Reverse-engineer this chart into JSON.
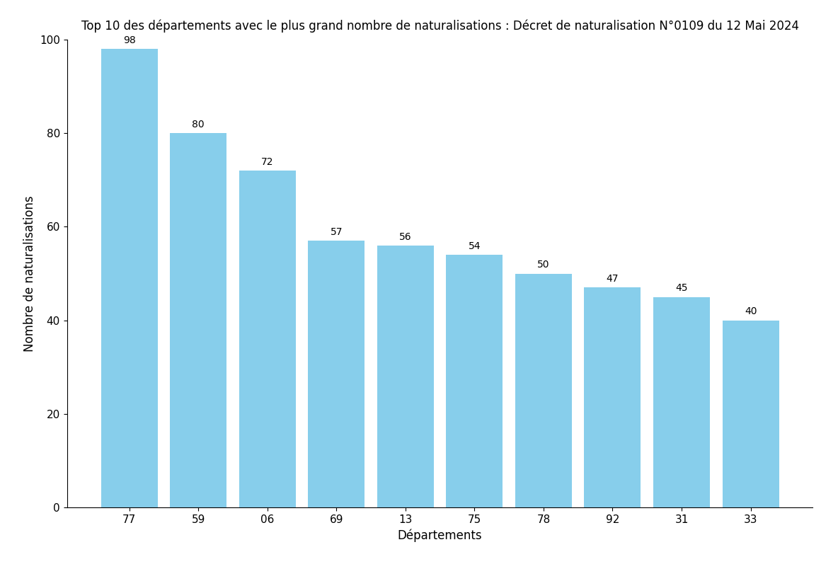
{
  "title": "Top 10 des départements avec le plus grand nombre de naturalisations : Décret de naturalisation N°0109 du 12 Mai 2024",
  "xlabel": "Départements",
  "ylabel": "Nombre de naturalisations",
  "categories": [
    "77",
    "59",
    "06",
    "69",
    "13",
    "75",
    "78",
    "92",
    "31",
    "33"
  ],
  "values": [
    98,
    80,
    72,
    57,
    56,
    54,
    50,
    47,
    45,
    40
  ],
  "bar_color": "#87CEEB",
  "ylim": [
    0,
    100
  ],
  "yticks": [
    0,
    20,
    40,
    60,
    80,
    100
  ],
  "title_fontsize": 12,
  "label_fontsize": 12,
  "tick_fontsize": 11,
  "annotation_fontsize": 10,
  "background_color": "#ffffff",
  "bar_width": 0.82
}
